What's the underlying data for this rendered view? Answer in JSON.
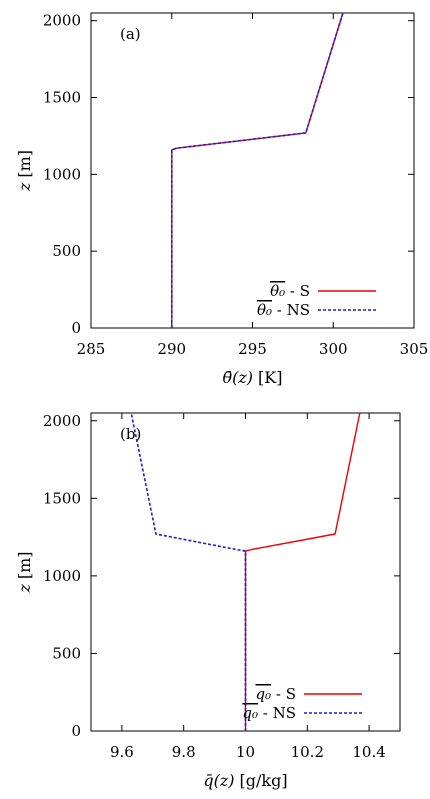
{
  "chart_data": [
    {
      "type": "line",
      "panel_label": "(a)",
      "xlabel_main": "θ̄(z)",
      "xlabel_unit": "[K]",
      "ylabel_main": "z",
      "ylabel_unit": "[m]",
      "xlim": [
        285,
        305
      ],
      "ylim": [
        0,
        2050
      ],
      "xticks": [
        "285",
        "290",
        "295",
        "300",
        "305"
      ],
      "yticks": [
        "0",
        "500",
        "1000",
        "1500",
        "2000"
      ],
      "xtick_values": [
        285,
        290,
        295,
        300,
        305
      ],
      "ytick_values": [
        0,
        500,
        1000,
        1500,
        2000
      ],
      "legend_position": "bottom-right",
      "series": [
        {
          "name": "θ̄₀ - S",
          "legend_symbol": "θ₀",
          "legend_suffix": " - S",
          "color": "#ee0000",
          "style": "solid",
          "x": [
            290,
            290,
            290.3,
            298.3,
            300.6
          ],
          "y": [
            0,
            1160,
            1170,
            1270,
            2050
          ]
        },
        {
          "name": "θ̄₀ - NS",
          "legend_symbol": "θ₀",
          "legend_suffix": " - NS",
          "color": "#1a1ae6",
          "style": "dashed",
          "x": [
            290,
            290,
            290.3,
            298.3,
            300.6
          ],
          "y": [
            0,
            1160,
            1170,
            1270,
            2050
          ]
        }
      ]
    },
    {
      "type": "line",
      "panel_label": "(b)",
      "xlabel_main": "q̄(z)",
      "xlabel_unit": "[g/kg]",
      "ylabel_main": "z",
      "ylabel_unit": "[m]",
      "xlim": [
        9.5,
        10.5
      ],
      "ylim": [
        0,
        2050
      ],
      "xticks": [
        "9.6",
        "9.8",
        "10",
        "10.2",
        "10.4"
      ],
      "yticks": [
        "0",
        "500",
        "1000",
        "1500",
        "2000"
      ],
      "xtick_values": [
        9.6,
        9.8,
        10,
        10.2,
        10.4
      ],
      "ytick_values": [
        0,
        500,
        1000,
        1500,
        2000
      ],
      "legend_position": "bottom-right",
      "series": [
        {
          "name": "q̄₀ - S",
          "legend_symbol": "q₀",
          "legend_suffix": " - S",
          "color": "#ee0000",
          "style": "solid",
          "x": [
            10,
            10,
            10.02,
            10.29,
            10.37
          ],
          "y": [
            0,
            1160,
            1170,
            1270,
            2050
          ]
        },
        {
          "name": "q̄₀ - NS",
          "legend_symbol": "q₀",
          "legend_suffix": " - NS",
          "color": "#1a1ae6",
          "style": "dashed",
          "x": [
            10,
            10,
            9.97,
            9.71,
            9.63
          ],
          "y": [
            0,
            1160,
            1170,
            1270,
            2050
          ]
        }
      ]
    }
  ]
}
